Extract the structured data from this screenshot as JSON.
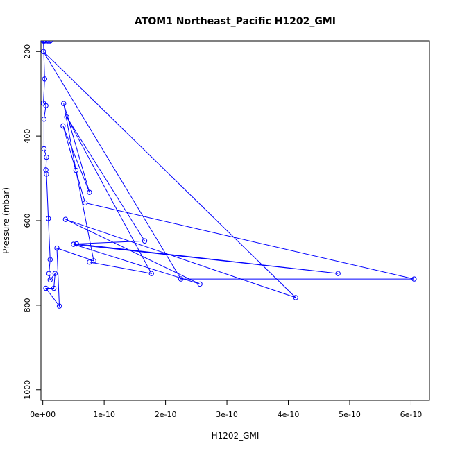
{
  "chart_data": {
    "type": "line",
    "title": "ATOM1 Northeast_Pacific H1202_GMI",
    "xlabel": "H1202_GMI",
    "ylabel": "Pressure (mbar)",
    "xlim": [
      -3e-12,
      6.3e-10
    ],
    "ylim": [
      1025,
      175
    ],
    "y_inverted": true,
    "x_ticks": [
      0,
      1e-10,
      2e-10,
      3e-10,
      4e-10,
      5e-10,
      6e-10
    ],
    "x_tick_labels": [
      "0e+00",
      "1e-10",
      "2e-10",
      "3e-10",
      "4e-10",
      "5e-10",
      "6e-10"
    ],
    "y_ticks": [
      200,
      400,
      600,
      800,
      1000
    ],
    "y_tick_labels": [
      "200",
      "400",
      "600",
      "800",
      "1000"
    ],
    "grid": false,
    "legend": "none",
    "marker": "open-circle",
    "series": [
      {
        "color": "#0000ff",
        "points": [
          [
            1e-12,
            175
          ],
          [
            3e-12,
            265
          ],
          [
            1e-12,
            322
          ],
          [
            5e-12,
            328
          ],
          [
            2e-12,
            360
          ],
          [
            2e-12,
            430
          ],
          [
            6e-12,
            450
          ],
          [
            5e-12,
            480
          ],
          [
            6e-12,
            490
          ],
          [
            9e-12,
            595
          ],
          [
            1.2e-11,
            692
          ],
          [
            1e-11,
            725
          ],
          [
            1.2e-11,
            740
          ],
          [
            2e-11,
            725
          ],
          [
            1.8e-11,
            760
          ],
          [
            5e-12,
            760
          ],
          [
            2.7e-11,
            802
          ],
          [
            2.3e-11,
            665
          ],
          [
            8.3e-11,
            695
          ],
          [
            5.4e-11,
            481
          ],
          [
            3.4e-11,
            323
          ],
          [
            7.6e-11,
            533
          ],
          [
            3.3e-11,
            376
          ],
          [
            6.9e-11,
            558
          ],
          [
            6.05e-10,
            738
          ],
          [
            2.25e-10,
            738
          ],
          [
            1e-12,
            200
          ],
          [
            4.12e-10,
            782
          ],
          [
            3.7e-11,
            597
          ],
          [
            2.56e-10,
            750
          ],
          [
            5e-11,
            656
          ],
          [
            4.81e-10,
            725
          ],
          [
            5.5e-11,
            655
          ],
          [
            1.66e-10,
            648
          ],
          [
            3.9e-11,
            355
          ],
          [
            1.77e-10,
            725
          ],
          [
            7.6e-11,
            698
          ]
        ]
      },
      {
        "color": "#0000ff",
        "points": [
          [
            1e-12,
            175
          ],
          [
            1e-11,
            175
          ],
          [
            3e-12,
            175
          ],
          [
            8e-12,
            175
          ],
          [
            2e-12,
            175
          ],
          [
            1.2e-11,
            175
          ]
        ]
      }
    ]
  }
}
